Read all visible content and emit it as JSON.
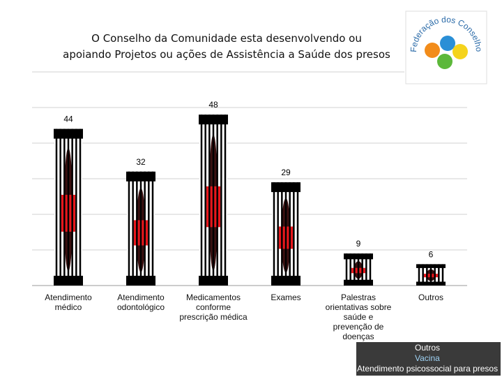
{
  "chart_data": {
    "type": "bar",
    "title": "O Conselho da Comunidade esta desenvolvendo ou\napoiando Projetos ou ações de Assistência a Saúde dos presos",
    "categories": [
      "Atendimento\nmédico",
      "Atendimento\nodontológico",
      "Medicamentos\nconforme\nprescrição médica",
      "Exames",
      "Palestras\norientativas sobre\nsaúde e\nprevenção de\ndoenças",
      "Outros"
    ],
    "values": [
      44,
      32,
      48,
      29,
      9,
      6
    ],
    "color": "#e8171c",
    "ylim": [
      0,
      60
    ],
    "yticks": [
      0,
      10,
      20,
      30,
      40,
      50,
      60
    ],
    "grid": true
  },
  "logo_text": "Federação dos Conselhos da Comunidade do Paraná",
  "notes": [
    "Outros",
    "Vacina",
    "Atendimento psicossocial para presos"
  ]
}
